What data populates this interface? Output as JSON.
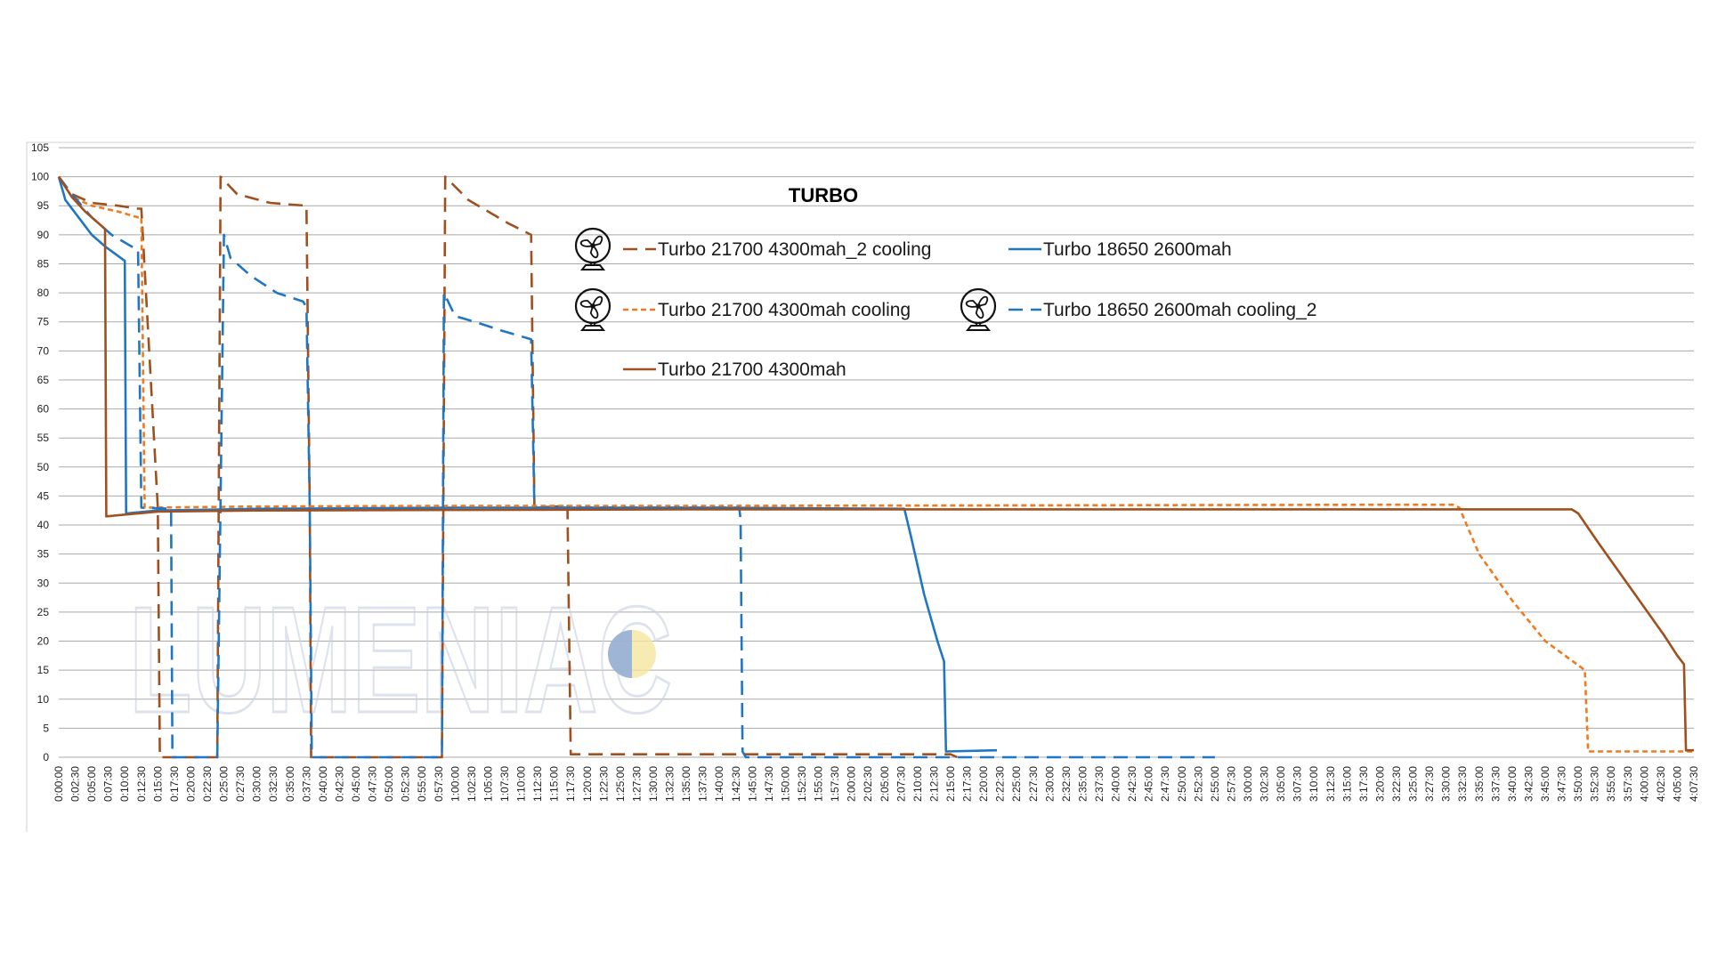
{
  "chart_data": {
    "type": "line",
    "title": "TURBO",
    "xlabel": "",
    "ylabel": "",
    "ylim": [
      0,
      105
    ],
    "yticks": [
      0,
      5,
      10,
      15,
      20,
      25,
      30,
      35,
      40,
      45,
      50,
      55,
      60,
      65,
      70,
      75,
      80,
      85,
      90,
      95,
      100,
      105
    ],
    "x_unit": "h:mm:ss",
    "x_tick_interval_minutes": 2.5,
    "xlim_minutes": [
      0,
      247.5
    ],
    "grid": "horizontal",
    "legend_position": "top-center",
    "watermark": "LUMENIAC",
    "series": [
      {
        "name": "Turbo 21700 4300mah_2 cooling",
        "color": "#a0501e",
        "dash": "long-dash",
        "fan_icon": true,
        "points": [
          [
            0,
            100
          ],
          [
            2,
            97
          ],
          [
            5,
            95.5
          ],
          [
            9,
            95
          ],
          [
            12,
            94.5
          ],
          [
            12.5,
            94.5
          ],
          [
            15,
            43
          ],
          [
            15.3,
            0
          ],
          [
            24,
            0
          ],
          [
            24.5,
            100
          ],
          [
            27,
            97
          ],
          [
            32,
            95.5
          ],
          [
            37.5,
            95
          ],
          [
            38,
            43
          ],
          [
            38.2,
            0
          ],
          [
            58,
            0
          ],
          [
            58.5,
            100
          ],
          [
            62,
            96
          ],
          [
            68,
            92
          ],
          [
            71.5,
            90
          ],
          [
            72,
            43
          ],
          [
            77,
            43.3
          ],
          [
            77.5,
            0.5
          ],
          [
            135,
            0.5
          ],
          [
            136,
            0
          ]
        ]
      },
      {
        "name": "Turbo 18650 2600mah",
        "color": "#1f77c4",
        "dash": "solid",
        "fan_icon": false,
        "points": [
          [
            0,
            100
          ],
          [
            1,
            96
          ],
          [
            3,
            93
          ],
          [
            5,
            90
          ],
          [
            7,
            88
          ],
          [
            10,
            85.5
          ],
          [
            10.2,
            42
          ],
          [
            15,
            42.5
          ],
          [
            30,
            42.8
          ],
          [
            60,
            43
          ],
          [
            100,
            43
          ],
          [
            128,
            42.8
          ],
          [
            129,
            38
          ],
          [
            131,
            28
          ],
          [
            133,
            20
          ],
          [
            134,
            16.5
          ],
          [
            134.3,
            1
          ],
          [
            142,
            1.2
          ]
        ]
      },
      {
        "name": "Turbo 21700 4300mah cooling",
        "color": "#ee7a22",
        "dash": "short-dash",
        "fan_icon": true,
        "points": [
          [
            0,
            100
          ],
          [
            2,
            96.5
          ],
          [
            5,
            95
          ],
          [
            9,
            94
          ],
          [
            12,
            93
          ],
          [
            12.5,
            93
          ],
          [
            13,
            43
          ],
          [
            30,
            43.2
          ],
          [
            60,
            43.3
          ],
          [
            100,
            43.3
          ],
          [
            150,
            43.4
          ],
          [
            200,
            43.5
          ],
          [
            211,
            43.5
          ],
          [
            212,
            43
          ],
          [
            215,
            35
          ],
          [
            220,
            27
          ],
          [
            225,
            20
          ],
          [
            228,
            17.5
          ],
          [
            231,
            15
          ],
          [
            231.5,
            1
          ],
          [
            247.5,
            1
          ]
        ]
      },
      {
        "name": "Turbo 18650 2600mah cooling_2",
        "color": "#1f77c4",
        "dash": "long-dash",
        "fan_icon": true,
        "points": [
          [
            0,
            100
          ],
          [
            2,
            97
          ],
          [
            5,
            93
          ],
          [
            8,
            90
          ],
          [
            11,
            88
          ],
          [
            12,
            87.5
          ],
          [
            12.5,
            43
          ],
          [
            17,
            42.8
          ],
          [
            17.2,
            0
          ],
          [
            24,
            0
          ],
          [
            25,
            90
          ],
          [
            26,
            86
          ],
          [
            29,
            83
          ],
          [
            33,
            80
          ],
          [
            37,
            78.5
          ],
          [
            37.5,
            77.5
          ],
          [
            38,
            43
          ],
          [
            38.3,
            0
          ],
          [
            58,
            0
          ],
          [
            58.3,
            80
          ],
          [
            60,
            76
          ],
          [
            63,
            75
          ],
          [
            67,
            73.5
          ],
          [
            71.5,
            72
          ],
          [
            72,
            43
          ],
          [
            103,
            43
          ],
          [
            103.2,
            41
          ],
          [
            103.5,
            1
          ],
          [
            104,
            0
          ],
          [
            175,
            0
          ]
        ]
      },
      {
        "name": "Turbo 21700 4300mah",
        "color": "#a0501e",
        "dash": "solid",
        "fan_icon": false,
        "points": [
          [
            0,
            100
          ],
          [
            2,
            96.5
          ],
          [
            4,
            94
          ],
          [
            7,
            91
          ],
          [
            7.2,
            41.5
          ],
          [
            15,
            42.3
          ],
          [
            30,
            42.5
          ],
          [
            60,
            42.6
          ],
          [
            100,
            42.7
          ],
          [
            150,
            42.7
          ],
          [
            200,
            42.7
          ],
          [
            229,
            42.7
          ],
          [
            230,
            42
          ],
          [
            233,
            37
          ],
          [
            238,
            29
          ],
          [
            243,
            21
          ],
          [
            245,
            17.5
          ],
          [
            246,
            16
          ],
          [
            246.3,
            1.2
          ],
          [
            247.5,
            1.2
          ]
        ]
      }
    ]
  }
}
